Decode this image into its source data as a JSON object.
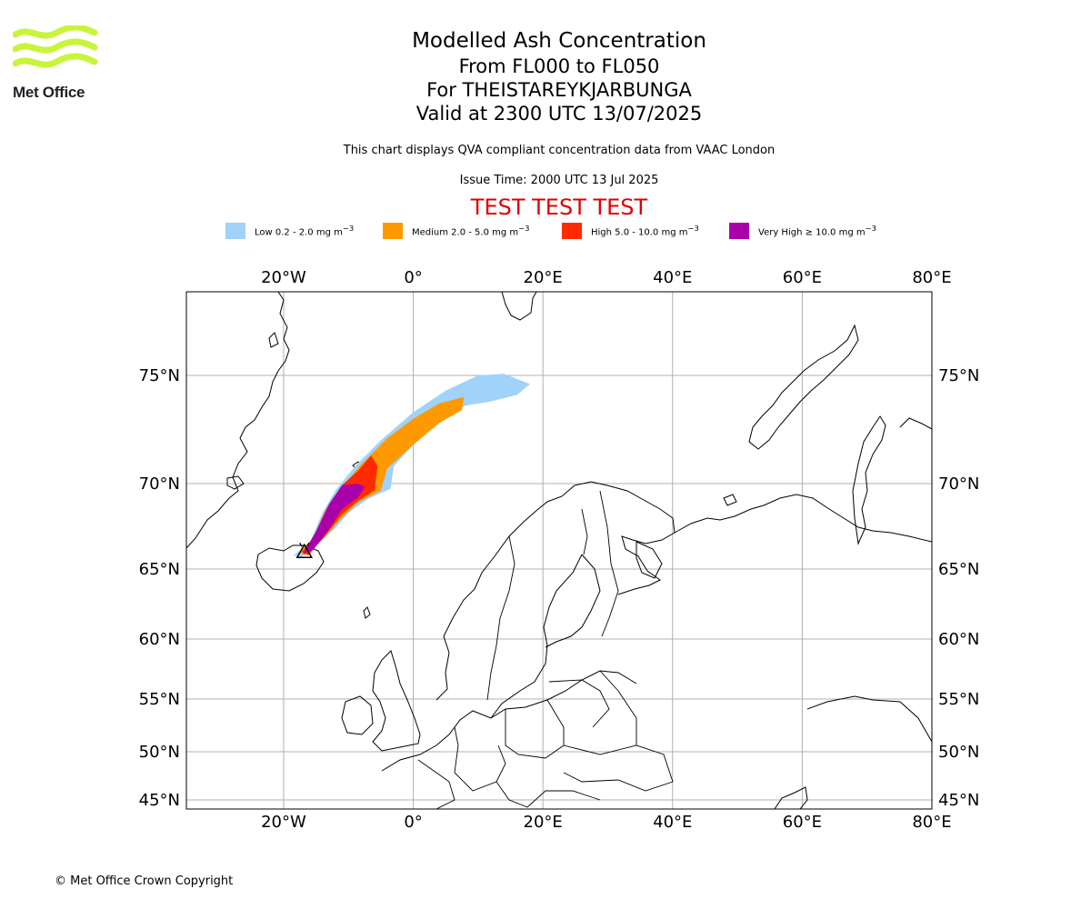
{
  "brand": {
    "name": "Met Office",
    "color": "#c8f53c",
    "icon": "met-office-wave-logo"
  },
  "header": {
    "title": "Modelled Ash Concentration",
    "level_range": "From FL000 to FL050",
    "volcano": "For THEISTAREYKJARBUNGA",
    "valid_time": "Valid at 2300 UTC 13/07/2025",
    "description": "This chart displays QVA compliant concentration data from VAAC London",
    "issue_time": "Issue Time: 2000 UTC 13 Jul 2025",
    "test_banner": "TEST TEST TEST",
    "test_color": "#e00000"
  },
  "legend": [
    {
      "label": "Low 0.2 - 2.0 mg m",
      "sup": "−3",
      "color": "#a0d2fa"
    },
    {
      "label": "Medium 2.0 - 5.0 mg m",
      "sup": "−3",
      "color": "#ff9900"
    },
    {
      "label": "High 5.0 - 10.0 mg m",
      "sup": "−3",
      "color": "#ff2a00"
    },
    {
      "label": "Very High  ≥  10.0 mg m",
      "sup": "−3",
      "color": "#aa00aa"
    }
  ],
  "map": {
    "projection": "plate-carree-stretched",
    "lon_range": [
      -35,
      80
    ],
    "lat_range": [
      44,
      80
    ],
    "gridlines": true,
    "lon_ticks": [
      {
        "value": -20,
        "label": "20°W"
      },
      {
        "value": 0,
        "label": "0°"
      },
      {
        "value": 20,
        "label": "20°E"
      },
      {
        "value": 40,
        "label": "40°E"
      },
      {
        "value": 60,
        "label": "60°E"
      },
      {
        "value": 80,
        "label": "80°E"
      }
    ],
    "lat_ticks": [
      {
        "value": 75,
        "label": "75°N"
      },
      {
        "value": 70,
        "label": "70°N"
      },
      {
        "value": 65,
        "label": "65°N"
      },
      {
        "value": 60,
        "label": "60°N"
      },
      {
        "value": 55,
        "label": "55°N"
      },
      {
        "value": 50,
        "label": "50°N"
      },
      {
        "value": 45,
        "label": "45°N"
      }
    ],
    "volcano_marker": {
      "lon": -16.8,
      "lat": 66.0,
      "icon": "volcano-triangle-icon"
    },
    "ash_plume": {
      "low": [
        [
          -18.5,
          65.8
        ],
        [
          -16,
          66.5
        ],
        [
          -14,
          68.3
        ],
        [
          -12,
          69.6
        ],
        [
          -9,
          70.8
        ],
        [
          -5,
          72.0
        ],
        [
          0,
          73.3
        ],
        [
          5,
          74.3
        ],
        [
          10,
          75.0
        ],
        [
          14,
          75.1
        ],
        [
          18,
          74.6
        ],
        [
          16,
          74.1
        ],
        [
          12,
          73.8
        ],
        [
          8,
          73.6
        ],
        [
          4,
          72.8
        ],
        [
          0,
          71.8
        ],
        [
          -3,
          70.8
        ],
        [
          -3.5,
          69.7
        ],
        [
          -7,
          69.1
        ],
        [
          -10,
          68.3
        ],
        [
          -12,
          67.4
        ],
        [
          -15,
          66.5
        ],
        [
          -17.2,
          65.7
        ]
      ],
      "medium": [
        [
          -17.5,
          66.0
        ],
        [
          -15.5,
          66.8
        ],
        [
          -13.5,
          68.5
        ],
        [
          -11,
          69.8
        ],
        [
          -8,
          70.9
        ],
        [
          -4,
          72.1
        ],
        [
          0,
          73.0
        ],
        [
          4,
          73.7
        ],
        [
          7.8,
          74.0
        ],
        [
          7.5,
          73.4
        ],
        [
          4,
          72.8
        ],
        [
          0,
          71.8
        ],
        [
          -4,
          70.7
        ],
        [
          -5,
          69.6
        ],
        [
          -8.5,
          68.9
        ],
        [
          -11,
          68.0
        ],
        [
          -14,
          66.7
        ],
        [
          -16.8,
          65.8
        ]
      ],
      "high": [
        [
          -17.2,
          66.0
        ],
        [
          -15,
          67.0
        ],
        [
          -13,
          68.6
        ],
        [
          -11,
          69.9
        ],
        [
          -8.5,
          70.6
        ],
        [
          -6.5,
          71.3
        ],
        [
          -5.5,
          70.8
        ],
        [
          -6,
          69.6
        ],
        [
          -8.5,
          69.0
        ],
        [
          -11,
          68.2
        ],
        [
          -13.5,
          67.0
        ],
        [
          -16.2,
          65.8
        ]
      ],
      "very_high": [
        [
          -17,
          65.9
        ],
        [
          -15,
          67.2
        ],
        [
          -13,
          68.8
        ],
        [
          -11,
          69.9
        ],
        [
          -8.5,
          70.0
        ],
        [
          -7.5,
          69.8
        ],
        [
          -8.5,
          69.2
        ],
        [
          -11,
          68.5
        ],
        [
          -13.2,
          67.2
        ],
        [
          -15.5,
          66.1
        ]
      ]
    }
  },
  "footer": {
    "copyright": "© Met Office Crown Copyright"
  }
}
